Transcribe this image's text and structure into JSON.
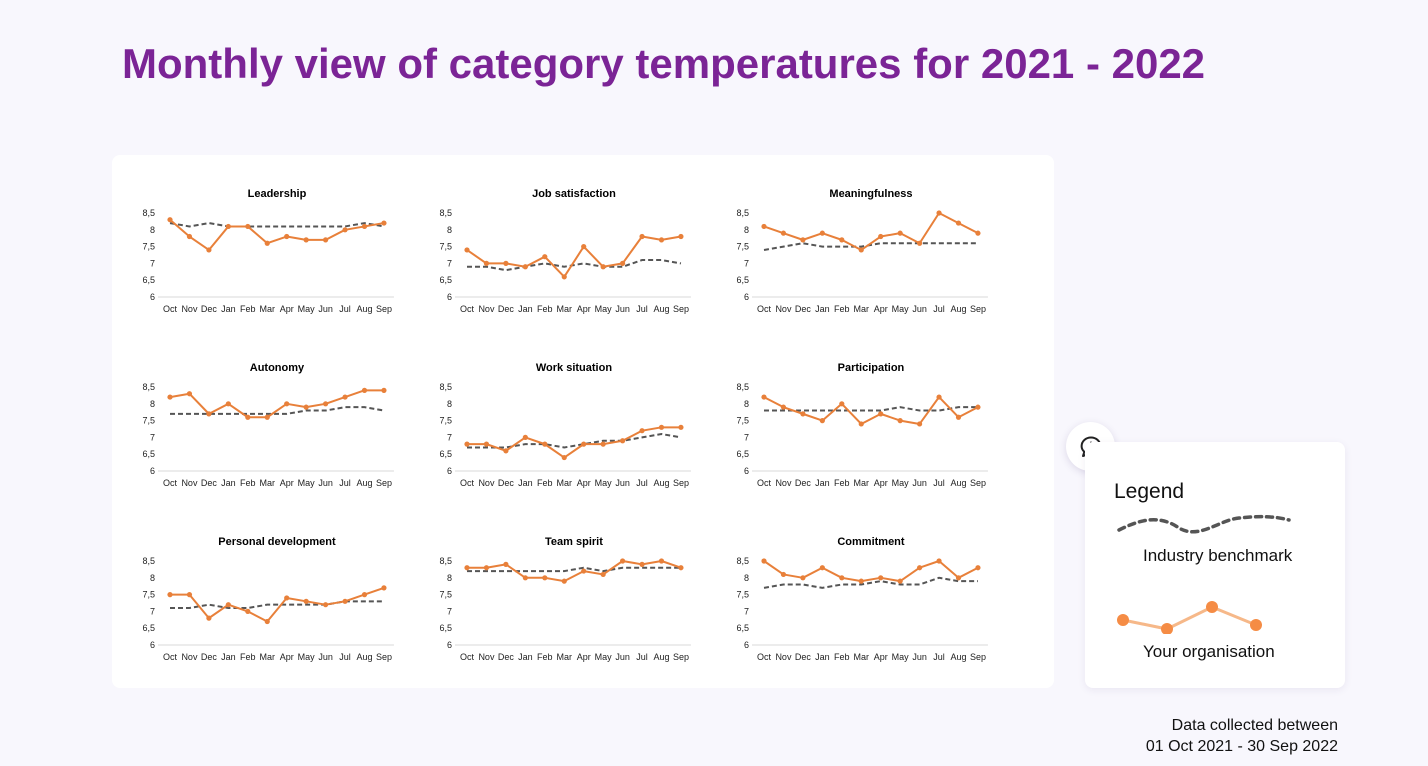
{
  "page": {
    "title": "Monthly view of category temperatures for 2021 - 2022"
  },
  "legend": {
    "title": "Legend",
    "benchmark_label": "Industry benchmark",
    "org_label": "Your organisation"
  },
  "feedback": {
    "icon": "feedback-chat-alert-icon"
  },
  "footer": {
    "line1": "Data collected between",
    "line2": "01 Oct 2021 - 30 Sep 2022"
  },
  "colors": {
    "title": "#7b2496",
    "organisation_line": "#e8803a",
    "benchmark_line": "#555555",
    "axis": "#d9d9d9",
    "background": "#f8f7fd"
  },
  "chart_data": [
    {
      "type": "line",
      "title": "Leadership",
      "categories": [
        "Oct",
        "Nov",
        "Dec",
        "Jan",
        "Feb",
        "Mar",
        "Apr",
        "May",
        "Jun",
        "Jul",
        "Aug",
        "Sep"
      ],
      "yticks": [
        "8,5",
        "8",
        "7,5",
        "7",
        "6,5",
        "6"
      ],
      "ylim": [
        6,
        8.5
      ],
      "series": [
        {
          "role": "benchmark",
          "values": [
            8.2,
            8.1,
            8.2,
            8.1,
            8.1,
            8.1,
            8.1,
            8.1,
            8.1,
            8.1,
            8.2,
            8.1
          ]
        },
        {
          "role": "organisation",
          "values": [
            8.3,
            7.8,
            7.4,
            8.1,
            8.1,
            7.6,
            7.8,
            7.7,
            7.7,
            8.0,
            8.1,
            8.2
          ]
        }
      ]
    },
    {
      "type": "line",
      "title": "Job satisfaction",
      "categories": [
        "Oct",
        "Nov",
        "Dec",
        "Jan",
        "Feb",
        "Mar",
        "Apr",
        "May",
        "Jun",
        "Jul",
        "Aug",
        "Sep"
      ],
      "yticks": [
        "8,5",
        "8",
        "7,5",
        "7",
        "6,5",
        "6"
      ],
      "ylim": [
        6,
        8.5
      ],
      "series": [
        {
          "role": "benchmark",
          "values": [
            6.9,
            6.9,
            6.8,
            6.9,
            7.0,
            6.9,
            7.0,
            6.9,
            6.9,
            7.1,
            7.1,
            7.0
          ]
        },
        {
          "role": "organisation",
          "values": [
            7.4,
            7.0,
            7.0,
            6.9,
            7.2,
            6.6,
            7.5,
            6.9,
            7.0,
            7.8,
            7.7,
            7.8
          ]
        }
      ]
    },
    {
      "type": "line",
      "title": "Meaningfulness",
      "categories": [
        "Oct",
        "Nov",
        "Dec",
        "Jan",
        "Feb",
        "Mar",
        "Apr",
        "May",
        "Jun",
        "Jul",
        "Aug",
        "Sep"
      ],
      "yticks": [
        "8,5",
        "8",
        "7,5",
        "7",
        "6,5",
        "6"
      ],
      "ylim": [
        6,
        8.5
      ],
      "series": [
        {
          "role": "benchmark",
          "values": [
            7.4,
            7.5,
            7.6,
            7.5,
            7.5,
            7.5,
            7.6,
            7.6,
            7.6,
            7.6,
            7.6,
            7.6
          ]
        },
        {
          "role": "organisation",
          "values": [
            8.1,
            7.9,
            7.7,
            7.9,
            7.7,
            7.4,
            7.8,
            7.9,
            7.6,
            8.5,
            8.2,
            7.9
          ]
        }
      ]
    },
    {
      "type": "line",
      "title": "Autonomy",
      "categories": [
        "Oct",
        "Nov",
        "Dec",
        "Jan",
        "Feb",
        "Mar",
        "Apr",
        "May",
        "Jun",
        "Jul",
        "Aug",
        "Sep"
      ],
      "yticks": [
        "8,5",
        "8",
        "7,5",
        "7",
        "6,5",
        "6"
      ],
      "ylim": [
        6,
        8.5
      ],
      "series": [
        {
          "role": "benchmark",
          "values": [
            7.7,
            7.7,
            7.7,
            7.7,
            7.7,
            7.7,
            7.7,
            7.8,
            7.8,
            7.9,
            7.9,
            7.8
          ]
        },
        {
          "role": "organisation",
          "values": [
            8.2,
            8.3,
            7.7,
            8.0,
            7.6,
            7.6,
            8.0,
            7.9,
            8.0,
            8.2,
            8.4,
            8.4
          ]
        }
      ]
    },
    {
      "type": "line",
      "title": "Work situation",
      "categories": [
        "Oct",
        "Nov",
        "Dec",
        "Jan",
        "Feb",
        "Mar",
        "Apr",
        "May",
        "Jun",
        "Jul",
        "Aug",
        "Sep"
      ],
      "yticks": [
        "8,5",
        "8",
        "7,5",
        "7",
        "6,5",
        "6"
      ],
      "ylim": [
        6,
        8.5
      ],
      "series": [
        {
          "role": "benchmark",
          "values": [
            6.7,
            6.7,
            6.7,
            6.8,
            6.8,
            6.7,
            6.8,
            6.9,
            6.9,
            7.0,
            7.1,
            7.0
          ]
        },
        {
          "role": "organisation",
          "values": [
            6.8,
            6.8,
            6.6,
            7.0,
            6.8,
            6.4,
            6.8,
            6.8,
            6.9,
            7.2,
            7.3,
            7.3
          ]
        }
      ]
    },
    {
      "type": "line",
      "title": "Participation",
      "categories": [
        "Oct",
        "Nov",
        "Dec",
        "Jan",
        "Feb",
        "Mar",
        "Apr",
        "May",
        "Jun",
        "Jul",
        "Aug",
        "Sep"
      ],
      "yticks": [
        "8,5",
        "8",
        "7,5",
        "7",
        "6,5",
        "6"
      ],
      "ylim": [
        6,
        8.5
      ],
      "series": [
        {
          "role": "benchmark",
          "values": [
            7.8,
            7.8,
            7.8,
            7.8,
            7.8,
            7.8,
            7.8,
            7.9,
            7.8,
            7.8,
            7.9,
            7.9
          ]
        },
        {
          "role": "organisation",
          "values": [
            8.2,
            7.9,
            7.7,
            7.5,
            8.0,
            7.4,
            7.7,
            7.5,
            7.4,
            8.2,
            7.6,
            7.9
          ]
        }
      ]
    },
    {
      "type": "line",
      "title": "Personal development",
      "categories": [
        "Oct",
        "Nov",
        "Dec",
        "Jan",
        "Feb",
        "Mar",
        "Apr",
        "May",
        "Jun",
        "Jul",
        "Aug",
        "Sep"
      ],
      "yticks": [
        "8,5",
        "8",
        "7,5",
        "7",
        "6,5",
        "6"
      ],
      "ylim": [
        6,
        8.5
      ],
      "series": [
        {
          "role": "benchmark",
          "values": [
            7.1,
            7.1,
            7.2,
            7.1,
            7.1,
            7.2,
            7.2,
            7.2,
            7.2,
            7.3,
            7.3,
            7.3
          ]
        },
        {
          "role": "organisation",
          "values": [
            7.5,
            7.5,
            6.8,
            7.2,
            7.0,
            6.7,
            7.4,
            7.3,
            7.2,
            7.3,
            7.5,
            7.7
          ]
        }
      ]
    },
    {
      "type": "line",
      "title": "Team spirit",
      "categories": [
        "Oct",
        "Nov",
        "Dec",
        "Jan",
        "Feb",
        "Mar",
        "Apr",
        "May",
        "Jun",
        "Jul",
        "Aug",
        "Sep"
      ],
      "yticks": [
        "8,5",
        "8",
        "7,5",
        "7",
        "6,5",
        "6"
      ],
      "ylim": [
        6,
        8.5
      ],
      "series": [
        {
          "role": "benchmark",
          "values": [
            8.2,
            8.2,
            8.2,
            8.2,
            8.2,
            8.2,
            8.3,
            8.2,
            8.3,
            8.3,
            8.3,
            8.3
          ]
        },
        {
          "role": "organisation",
          "values": [
            8.3,
            8.3,
            8.4,
            8.0,
            8.0,
            7.9,
            8.2,
            8.1,
            8.5,
            8.4,
            8.5,
            8.3
          ]
        }
      ]
    },
    {
      "type": "line",
      "title": "Commitment",
      "categories": [
        "Oct",
        "Nov",
        "Dec",
        "Jan",
        "Feb",
        "Mar",
        "Apr",
        "May",
        "Jun",
        "Jul",
        "Aug",
        "Sep"
      ],
      "yticks": [
        "8,5",
        "8",
        "7,5",
        "7",
        "6,5",
        "6"
      ],
      "ylim": [
        6,
        8.5
      ],
      "series": [
        {
          "role": "benchmark",
          "values": [
            7.7,
            7.8,
            7.8,
            7.7,
            7.8,
            7.8,
            7.9,
            7.8,
            7.8,
            8.0,
            7.9,
            7.9
          ]
        },
        {
          "role": "organisation",
          "values": [
            8.5,
            8.1,
            8.0,
            8.3,
            8.0,
            7.9,
            8.0,
            7.9,
            8.3,
            8.5,
            8.0,
            8.3
          ]
        }
      ]
    }
  ]
}
